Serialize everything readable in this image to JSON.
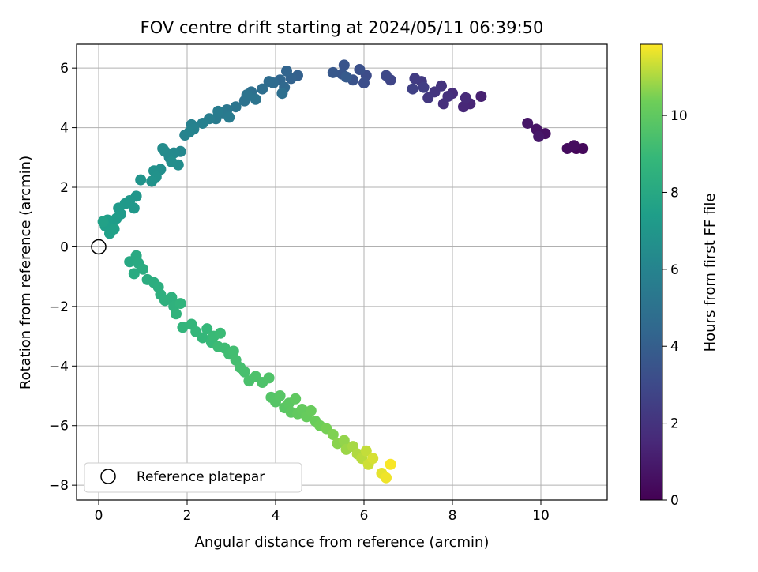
{
  "chart_data": {
    "type": "scatter",
    "title": "FOV centre drift starting at 2024/05/11 06:39:50",
    "xlabel": "Angular distance from reference (arcmin)",
    "ylabel": "Rotation from reference (arcmin)",
    "xlim": [
      -0.5,
      11.5
    ],
    "ylim": [
      -8.5,
      6.8
    ],
    "xticks": [
      0,
      2,
      4,
      6,
      8,
      10
    ],
    "yticks": [
      -8,
      -6,
      -4,
      -2,
      0,
      2,
      4,
      6
    ],
    "grid": true,
    "colorbar": {
      "label": "Hours from first FF file",
      "range": [
        0,
        11.85
      ],
      "ticks": [
        0,
        2,
        4,
        6,
        8,
        10
      ],
      "colormap": "viridis"
    },
    "legend": {
      "placement": "lower-left",
      "entries": [
        "Reference platepar"
      ]
    },
    "reference_point": {
      "x": 0,
      "y": 0,
      "label": "Reference platepar"
    },
    "series": [
      {
        "name": "FOV centre drift",
        "points": [
          {
            "x": 10.8,
            "y": 3.3,
            "c": 0.2
          },
          {
            "x": 10.95,
            "y": 3.3,
            "c": 0.3
          },
          {
            "x": 10.6,
            "y": 3.3,
            "c": 0.4
          },
          {
            "x": 10.75,
            "y": 3.4,
            "c": 0.45
          },
          {
            "x": 10.1,
            "y": 3.8,
            "c": 0.6
          },
          {
            "x": 9.9,
            "y": 3.95,
            "c": 0.7
          },
          {
            "x": 9.7,
            "y": 4.15,
            "c": 0.8
          },
          {
            "x": 9.95,
            "y": 3.7,
            "c": 0.85
          },
          {
            "x": 8.65,
            "y": 5.05,
            "c": 1.2
          },
          {
            "x": 8.4,
            "y": 4.8,
            "c": 1.4
          },
          {
            "x": 8.25,
            "y": 4.7,
            "c": 1.5
          },
          {
            "x": 8.3,
            "y": 5.0,
            "c": 1.6
          },
          {
            "x": 8.0,
            "y": 5.15,
            "c": 1.7
          },
          {
            "x": 7.8,
            "y": 4.8,
            "c": 1.8
          },
          {
            "x": 7.9,
            "y": 5.05,
            "c": 1.9
          },
          {
            "x": 7.75,
            "y": 5.4,
            "c": 2.0
          },
          {
            "x": 7.6,
            "y": 5.2,
            "c": 2.1
          },
          {
            "x": 7.45,
            "y": 5.0,
            "c": 2.2
          },
          {
            "x": 7.3,
            "y": 5.55,
            "c": 2.3
          },
          {
            "x": 7.15,
            "y": 5.65,
            "c": 2.4
          },
          {
            "x": 7.35,
            "y": 5.35,
            "c": 2.5
          },
          {
            "x": 7.1,
            "y": 5.3,
            "c": 2.6
          },
          {
            "x": 6.6,
            "y": 5.6,
            "c": 2.8
          },
          {
            "x": 6.5,
            "y": 5.75,
            "c": 2.9
          },
          {
            "x": 6.05,
            "y": 5.75,
            "c": 3.1
          },
          {
            "x": 6.0,
            "y": 5.5,
            "c": 3.2
          },
          {
            "x": 5.9,
            "y": 5.95,
            "c": 3.3
          },
          {
            "x": 5.75,
            "y": 5.6,
            "c": 3.4
          },
          {
            "x": 5.55,
            "y": 6.1,
            "c": 3.5
          },
          {
            "x": 5.5,
            "y": 5.8,
            "c": 3.6
          },
          {
            "x": 5.3,
            "y": 5.85,
            "c": 3.7
          },
          {
            "x": 5.6,
            "y": 5.7,
            "c": 3.8
          },
          {
            "x": 4.5,
            "y": 5.75,
            "c": 4.1
          },
          {
            "x": 4.35,
            "y": 5.65,
            "c": 4.2
          },
          {
            "x": 4.25,
            "y": 5.9,
            "c": 4.3
          },
          {
            "x": 4.1,
            "y": 5.6,
            "c": 4.4
          },
          {
            "x": 4.2,
            "y": 5.35,
            "c": 4.5
          },
          {
            "x": 3.95,
            "y": 5.5,
            "c": 4.6
          },
          {
            "x": 3.85,
            "y": 5.55,
            "c": 4.7
          },
          {
            "x": 3.7,
            "y": 5.3,
            "c": 4.8
          },
          {
            "x": 4.15,
            "y": 5.15,
            "c": 4.85
          },
          {
            "x": 3.45,
            "y": 5.2,
            "c": 4.9
          },
          {
            "x": 3.3,
            "y": 4.9,
            "c": 5.0
          },
          {
            "x": 3.35,
            "y": 5.1,
            "c": 5.1
          },
          {
            "x": 3.55,
            "y": 4.95,
            "c": 5.15
          },
          {
            "x": 3.1,
            "y": 4.7,
            "c": 5.2
          },
          {
            "x": 2.9,
            "y": 4.6,
            "c": 5.3
          },
          {
            "x": 2.8,
            "y": 4.5,
            "c": 5.4
          },
          {
            "x": 2.95,
            "y": 4.35,
            "c": 5.5
          },
          {
            "x": 2.65,
            "y": 4.3,
            "c": 5.55
          },
          {
            "x": 2.7,
            "y": 4.55,
            "c": 5.6
          },
          {
            "x": 2.5,
            "y": 4.3,
            "c": 5.7
          },
          {
            "x": 2.35,
            "y": 4.15,
            "c": 5.8
          },
          {
            "x": 2.1,
            "y": 4.1,
            "c": 5.85
          },
          {
            "x": 2.15,
            "y": 3.95,
            "c": 5.9
          },
          {
            "x": 1.95,
            "y": 3.75,
            "c": 6.0
          },
          {
            "x": 2.05,
            "y": 3.85,
            "c": 6.05
          },
          {
            "x": 1.85,
            "y": 3.2,
            "c": 6.2
          },
          {
            "x": 1.7,
            "y": 3.15,
            "c": 6.3
          },
          {
            "x": 1.6,
            "y": 3.0,
            "c": 6.35
          },
          {
            "x": 1.5,
            "y": 3.2,
            "c": 6.4
          },
          {
            "x": 1.45,
            "y": 3.3,
            "c": 6.45
          },
          {
            "x": 1.8,
            "y": 2.75,
            "c": 6.5
          },
          {
            "x": 1.65,
            "y": 2.85,
            "c": 6.55
          },
          {
            "x": 1.4,
            "y": 2.6,
            "c": 6.6
          },
          {
            "x": 1.25,
            "y": 2.55,
            "c": 6.7
          },
          {
            "x": 1.3,
            "y": 2.35,
            "c": 6.75
          },
          {
            "x": 1.2,
            "y": 2.2,
            "c": 6.8
          },
          {
            "x": 0.95,
            "y": 2.25,
            "c": 6.9
          },
          {
            "x": 0.85,
            "y": 1.7,
            "c": 7.0
          },
          {
            "x": 0.7,
            "y": 1.55,
            "c": 7.05
          },
          {
            "x": 0.8,
            "y": 1.3,
            "c": 7.1
          },
          {
            "x": 0.6,
            "y": 1.45,
            "c": 7.15
          },
          {
            "x": 0.45,
            "y": 1.3,
            "c": 7.2
          },
          {
            "x": 0.5,
            "y": 1.1,
            "c": 7.25
          },
          {
            "x": 0.4,
            "y": 0.95,
            "c": 7.3
          },
          {
            "x": 0.3,
            "y": 0.8,
            "c": 7.35
          },
          {
            "x": 0.2,
            "y": 0.9,
            "c": 7.4
          },
          {
            "x": 0.15,
            "y": 0.7,
            "c": 7.45
          },
          {
            "x": 0.25,
            "y": 0.45,
            "c": 7.5
          },
          {
            "x": 0.35,
            "y": 0.6,
            "c": 7.55
          },
          {
            "x": 0.1,
            "y": 0.85,
            "c": 7.6
          },
          {
            "x": 0.7,
            "y": -0.5,
            "c": 8.0
          },
          {
            "x": 0.85,
            "y": -0.3,
            "c": 8.05
          },
          {
            "x": 0.9,
            "y": -0.55,
            "c": 8.1
          },
          {
            "x": 0.8,
            "y": -0.9,
            "c": 8.15
          },
          {
            "x": 1.0,
            "y": -0.75,
            "c": 8.2
          },
          {
            "x": 1.1,
            "y": -1.1,
            "c": 8.25
          },
          {
            "x": 1.25,
            "y": -1.2,
            "c": 8.3
          },
          {
            "x": 1.35,
            "y": -1.35,
            "c": 8.35
          },
          {
            "x": 1.4,
            "y": -1.6,
            "c": 8.4
          },
          {
            "x": 1.5,
            "y": -1.8,
            "c": 8.45
          },
          {
            "x": 1.65,
            "y": -1.7,
            "c": 8.5
          },
          {
            "x": 1.7,
            "y": -2.0,
            "c": 8.55
          },
          {
            "x": 1.75,
            "y": -2.25,
            "c": 8.6
          },
          {
            "x": 1.85,
            "y": -1.9,
            "c": 8.65
          },
          {
            "x": 1.9,
            "y": -2.7,
            "c": 8.7
          },
          {
            "x": 2.1,
            "y": -2.6,
            "c": 8.75
          },
          {
            "x": 2.2,
            "y": -2.85,
            "c": 8.8
          },
          {
            "x": 2.35,
            "y": -3.05,
            "c": 8.85
          },
          {
            "x": 2.45,
            "y": -2.75,
            "c": 8.9
          },
          {
            "x": 2.55,
            "y": -3.2,
            "c": 8.95
          },
          {
            "x": 2.6,
            "y": -3.0,
            "c": 9.0
          },
          {
            "x": 2.75,
            "y": -2.9,
            "c": 9.05
          },
          {
            "x": 2.7,
            "y": -3.35,
            "c": 9.1
          },
          {
            "x": 2.85,
            "y": -3.4,
            "c": 9.15
          },
          {
            "x": 2.95,
            "y": -3.6,
            "c": 9.2
          },
          {
            "x": 3.05,
            "y": -3.5,
            "c": 9.25
          },
          {
            "x": 3.1,
            "y": -3.8,
            "c": 9.3
          },
          {
            "x": 3.2,
            "y": -4.05,
            "c": 9.35
          },
          {
            "x": 3.3,
            "y": -4.2,
            "c": 9.4
          },
          {
            "x": 3.4,
            "y": -4.5,
            "c": 9.45
          },
          {
            "x": 3.55,
            "y": -4.35,
            "c": 9.5
          },
          {
            "x": 3.7,
            "y": -4.55,
            "c": 9.55
          },
          {
            "x": 3.85,
            "y": -4.4,
            "c": 9.6
          },
          {
            "x": 3.9,
            "y": -5.05,
            "c": 9.7
          },
          {
            "x": 4.0,
            "y": -5.2,
            "c": 9.75
          },
          {
            "x": 4.1,
            "y": -5.0,
            "c": 9.8
          },
          {
            "x": 4.2,
            "y": -5.4,
            "c": 9.85
          },
          {
            "x": 4.3,
            "y": -5.25,
            "c": 9.9
          },
          {
            "x": 4.35,
            "y": -5.55,
            "c": 9.95
          },
          {
            "x": 4.45,
            "y": -5.1,
            "c": 10.0
          },
          {
            "x": 4.5,
            "y": -5.6,
            "c": 10.05
          },
          {
            "x": 4.6,
            "y": -5.45,
            "c": 10.1
          },
          {
            "x": 4.7,
            "y": -5.7,
            "c": 10.15
          },
          {
            "x": 4.8,
            "y": -5.5,
            "c": 10.2
          },
          {
            "x": 4.9,
            "y": -5.85,
            "c": 10.25
          },
          {
            "x": 5.0,
            "y": -6.0,
            "c": 10.35
          },
          {
            "x": 5.15,
            "y": -6.1,
            "c": 10.45
          },
          {
            "x": 5.3,
            "y": -6.3,
            "c": 10.55
          },
          {
            "x": 5.4,
            "y": -6.6,
            "c": 10.65
          },
          {
            "x": 5.55,
            "y": -6.5,
            "c": 10.75
          },
          {
            "x": 5.6,
            "y": -6.8,
            "c": 10.85
          },
          {
            "x": 5.75,
            "y": -6.7,
            "c": 10.95
          },
          {
            "x": 5.85,
            "y": -6.95,
            "c": 11.05
          },
          {
            "x": 5.95,
            "y": -7.1,
            "c": 11.15
          },
          {
            "x": 6.05,
            "y": -6.85,
            "c": 11.25
          },
          {
            "x": 6.1,
            "y": -7.3,
            "c": 11.35
          },
          {
            "x": 6.2,
            "y": -7.1,
            "c": 11.45
          },
          {
            "x": 6.4,
            "y": -7.6,
            "c": 11.6
          },
          {
            "x": 6.5,
            "y": -7.75,
            "c": 11.7
          },
          {
            "x": 6.6,
            "y": -7.3,
            "c": 11.8
          }
        ]
      }
    ]
  }
}
